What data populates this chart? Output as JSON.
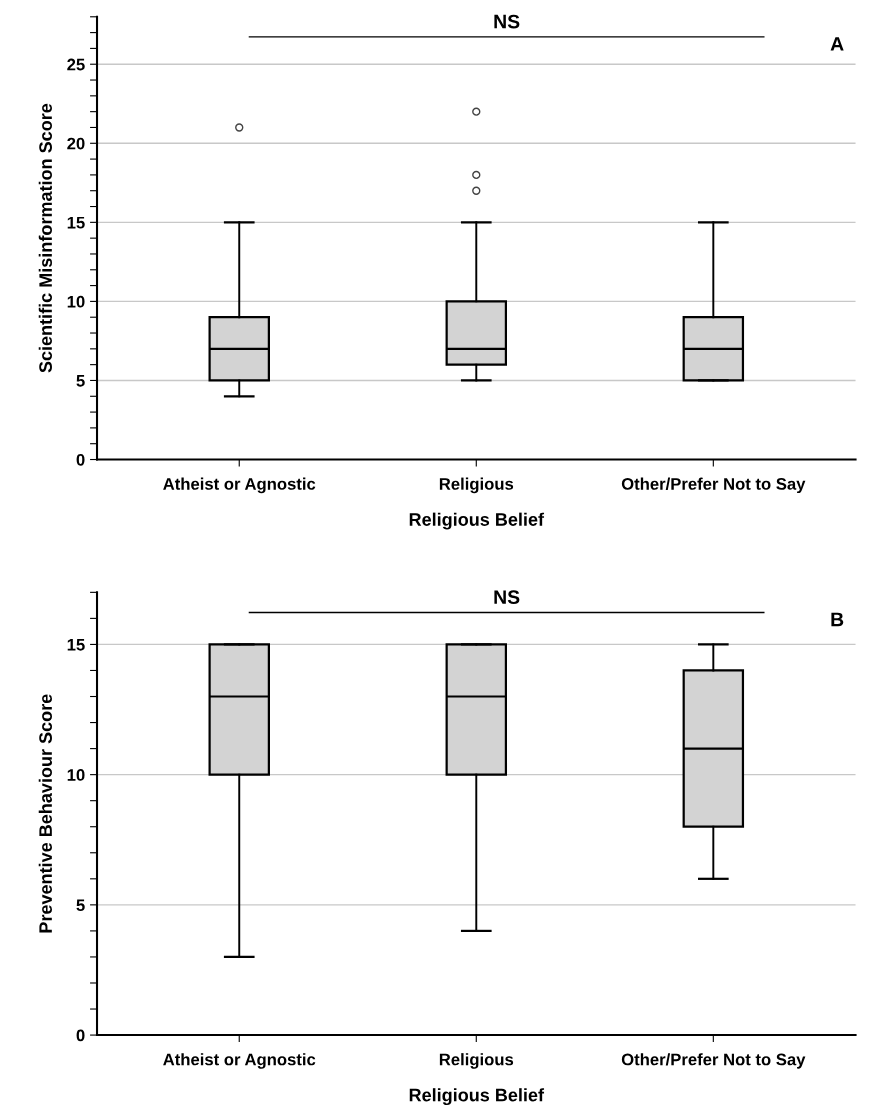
{
  "chart_data": [
    {
      "type": "box",
      "categories": [
        "Atheist or Agnostic",
        "Religious",
        "Other/Prefer Not to Say"
      ],
      "xlabel": "Religious Belief",
      "ylabel": "Scientific Misinformation Score",
      "boxes": [
        {
          "low": 4,
          "q1": 5,
          "median": 7,
          "q3": 9,
          "high": 15,
          "outliers": [
            21
          ]
        },
        {
          "low": 5,
          "q1": 6,
          "median": 7,
          "q3": 10,
          "high": 15,
          "outliers": [
            17,
            18,
            22
          ]
        },
        {
          "low": 5,
          "q1": 5,
          "median": 7,
          "q3": 9,
          "high": 15
        }
      ],
      "color": "#d3d3d3",
      "ylim": [
        0,
        28
      ],
      "yticks": [
        0,
        {
          "value": 1,
          "label": null
        },
        {
          "value": 2,
          "label": null
        },
        {
          "value": 3,
          "label": null
        },
        {
          "value": 4,
          "label": null
        },
        5,
        {
          "value": 6,
          "label": null
        },
        {
          "value": 7,
          "label": null
        },
        {
          "value": 8,
          "label": null
        },
        {
          "value": 9,
          "label": null
        },
        10,
        {
          "value": 11,
          "label": null
        },
        {
          "value": 12,
          "label": null
        },
        {
          "value": 13,
          "label": null
        },
        {
          "value": 14,
          "label": null
        },
        15,
        {
          "value": 16,
          "label": null
        },
        {
          "value": 17,
          "label": null
        },
        {
          "value": 18,
          "label": null
        },
        {
          "value": 19,
          "label": null
        },
        20,
        {
          "value": 21,
          "label": null
        },
        {
          "value": 22,
          "label": null
        },
        {
          "value": 23,
          "label": null
        },
        {
          "value": 24,
          "label": null
        },
        25,
        {
          "value": 26,
          "label": null
        },
        {
          "value": 27,
          "label": null
        },
        {
          "value": 28,
          "label": null
        }
      ],
      "grid": "y",
      "annotations": [
        "NS",
        "A"
      ]
    },
    {
      "type": "box",
      "categories": [
        "Atheist or Agnostic",
        "Religious",
        "Other/Prefer Not to Say"
      ],
      "xlabel": "Religious Belief",
      "ylabel": "Preventive Behaviour Score",
      "boxes": [
        {
          "low": 3,
          "q1": 10,
          "median": 13,
          "q3": 15,
          "high": 15
        },
        {
          "low": 4,
          "q1": 10,
          "median": 13,
          "q3": 15,
          "high": 15
        },
        {
          "low": 6,
          "q1": 8,
          "median": 11,
          "q3": 14,
          "high": 15
        }
      ],
      "color": "#d3d3d3",
      "ylim": [
        0,
        17
      ],
      "yticks": [
        0,
        {
          "value": 1,
          "label": null
        },
        {
          "value": 2,
          "label": null
        },
        {
          "value": 3,
          "label": null
        },
        {
          "value": 4,
          "label": null
        },
        5,
        {
          "value": 6,
          "label": null
        },
        {
          "value": 7,
          "label": null
        },
        {
          "value": 8,
          "label": null
        },
        {
          "value": 9,
          "label": null
        },
        10,
        {
          "value": 11,
          "label": null
        },
        {
          "value": 12,
          "label": null
        },
        {
          "value": 13,
          "label": null
        },
        {
          "value": 14,
          "label": null
        },
        15,
        {
          "value": 16,
          "label": null
        },
        {
          "value": 17,
          "label": null
        }
      ],
      "grid": "y",
      "annotations": [
        "NS",
        "B"
      ]
    }
  ]
}
